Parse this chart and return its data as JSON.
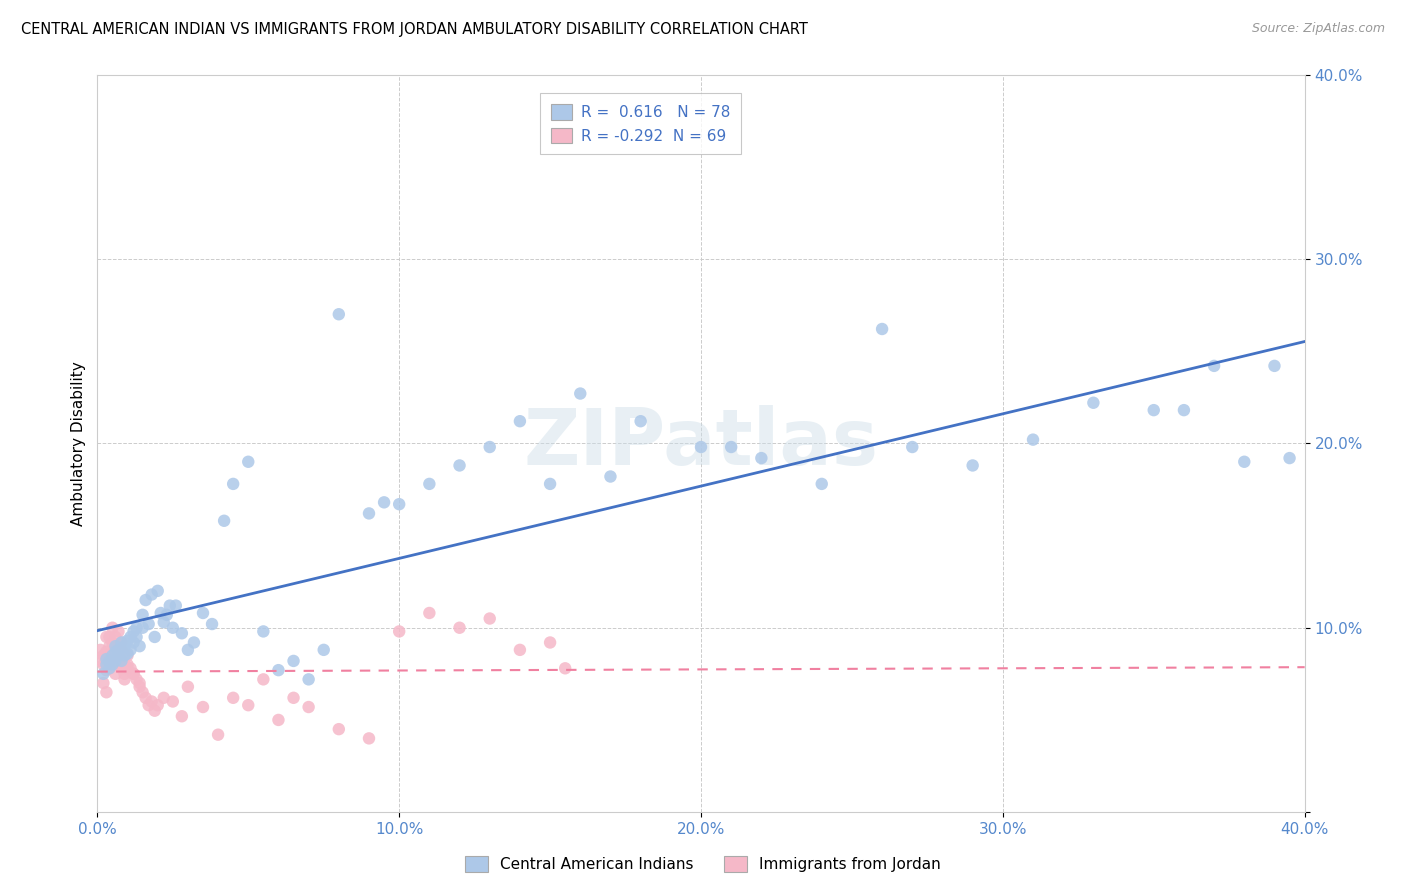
{
  "title": "CENTRAL AMERICAN INDIAN VS IMMIGRANTS FROM JORDAN AMBULATORY DISABILITY CORRELATION CHART",
  "source": "Source: ZipAtlas.com",
  "ylabel": "Ambulatory Disability",
  "xlim": [
    0.0,
    0.4
  ],
  "ylim": [
    0.0,
    0.4
  ],
  "xticklabels": [
    "0.0%",
    "",
    "10.0%",
    "",
    "20.0%",
    "",
    "30.0%",
    "",
    "40.0%"
  ],
  "yticklabels": [
    "",
    "10.0%",
    "20.0%",
    "30.0%",
    "40.0%"
  ],
  "blue_R": 0.616,
  "blue_N": 78,
  "pink_R": -0.292,
  "pink_N": 69,
  "blue_color": "#adc8e8",
  "pink_color": "#f5b8c8",
  "blue_line_color": "#4472c4",
  "pink_line_color": "#f080a0",
  "watermark": "ZIPatlas",
  "legend_label_blue": "Central American Indians",
  "legend_label_pink": "Immigrants from Jordan",
  "tick_color": "#5588cc",
  "blue_x": [
    0.002,
    0.003,
    0.003,
    0.004,
    0.004,
    0.005,
    0.005,
    0.006,
    0.006,
    0.006,
    0.007,
    0.007,
    0.008,
    0.008,
    0.009,
    0.009,
    0.01,
    0.01,
    0.011,
    0.011,
    0.012,
    0.012,
    0.013,
    0.013,
    0.014,
    0.015,
    0.015,
    0.016,
    0.017,
    0.018,
    0.019,
    0.02,
    0.021,
    0.022,
    0.023,
    0.024,
    0.025,
    0.026,
    0.028,
    0.03,
    0.032,
    0.035,
    0.038,
    0.042,
    0.045,
    0.05,
    0.055,
    0.06,
    0.065,
    0.07,
    0.075,
    0.08,
    0.09,
    0.095,
    0.1,
    0.11,
    0.12,
    0.13,
    0.14,
    0.15,
    0.16,
    0.17,
    0.18,
    0.2,
    0.21,
    0.22,
    0.24,
    0.26,
    0.27,
    0.29,
    0.31,
    0.33,
    0.35,
    0.36,
    0.37,
    0.38,
    0.39,
    0.395
  ],
  "blue_y": [
    0.075,
    0.08,
    0.083,
    0.078,
    0.082,
    0.08,
    0.085,
    0.082,
    0.087,
    0.09,
    0.085,
    0.088,
    0.082,
    0.092,
    0.085,
    0.09,
    0.086,
    0.093,
    0.088,
    0.095,
    0.092,
    0.098,
    0.095,
    0.1,
    0.09,
    0.1,
    0.107,
    0.115,
    0.102,
    0.118,
    0.095,
    0.12,
    0.108,
    0.103,
    0.107,
    0.112,
    0.1,
    0.112,
    0.097,
    0.088,
    0.092,
    0.108,
    0.102,
    0.158,
    0.178,
    0.19,
    0.098,
    0.077,
    0.082,
    0.072,
    0.088,
    0.27,
    0.162,
    0.168,
    0.167,
    0.178,
    0.188,
    0.198,
    0.212,
    0.178,
    0.227,
    0.182,
    0.212,
    0.198,
    0.198,
    0.192,
    0.178,
    0.262,
    0.198,
    0.188,
    0.202,
    0.222,
    0.218,
    0.218,
    0.242,
    0.19,
    0.242,
    0.192
  ],
  "pink_x": [
    0.001,
    0.001,
    0.002,
    0.002,
    0.003,
    0.003,
    0.003,
    0.004,
    0.004,
    0.004,
    0.005,
    0.005,
    0.005,
    0.006,
    0.006,
    0.006,
    0.007,
    0.007,
    0.007,
    0.008,
    0.008,
    0.008,
    0.009,
    0.009,
    0.01,
    0.01,
    0.011,
    0.012,
    0.013,
    0.014,
    0.015,
    0.016,
    0.017,
    0.018,
    0.019,
    0.02,
    0.022,
    0.025,
    0.028,
    0.03,
    0.035,
    0.04,
    0.045,
    0.05,
    0.055,
    0.06,
    0.065,
    0.07,
    0.08,
    0.09,
    0.1,
    0.11,
    0.12,
    0.13,
    0.14,
    0.15,
    0.155,
    0.003,
    0.004,
    0.005,
    0.006,
    0.007,
    0.008,
    0.009,
    0.01,
    0.012,
    0.014,
    0.002,
    0.003
  ],
  "pink_y": [
    0.082,
    0.088,
    0.08,
    0.085,
    0.077,
    0.082,
    0.087,
    0.078,
    0.083,
    0.09,
    0.08,
    0.086,
    0.092,
    0.082,
    0.087,
    0.075,
    0.08,
    0.085,
    0.09,
    0.078,
    0.083,
    0.088,
    0.075,
    0.08,
    0.08,
    0.085,
    0.078,
    0.075,
    0.072,
    0.068,
    0.065,
    0.062,
    0.058,
    0.06,
    0.055,
    0.058,
    0.062,
    0.06,
    0.052,
    0.068,
    0.057,
    0.042,
    0.062,
    0.058,
    0.072,
    0.05,
    0.062,
    0.057,
    0.045,
    0.04,
    0.098,
    0.108,
    0.1,
    0.105,
    0.088,
    0.092,
    0.078,
    0.095,
    0.095,
    0.1,
    0.095,
    0.098,
    0.092,
    0.072,
    0.078,
    0.075,
    0.07,
    0.07,
    0.065
  ]
}
